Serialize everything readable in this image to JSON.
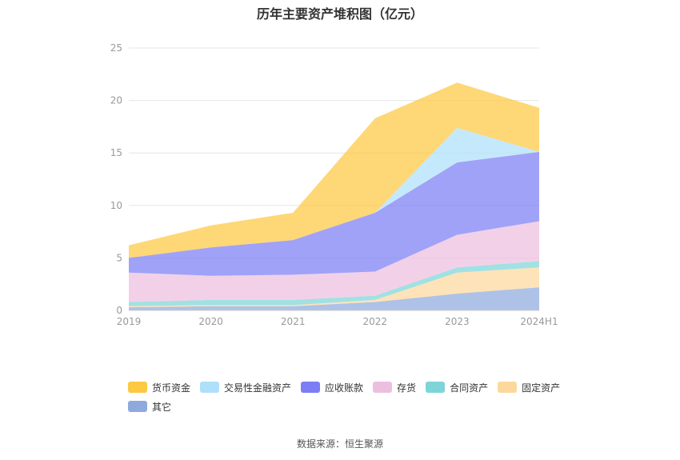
{
  "chart_data": {
    "type": "area",
    "stacked": true,
    "title": "历年主要资产堆积图（亿元）",
    "categories": [
      "2019",
      "2020",
      "2021",
      "2022",
      "2023",
      "2024H1"
    ],
    "ylim": [
      0,
      25
    ],
    "yticks": [
      0,
      5,
      10,
      15,
      20,
      25
    ],
    "xlabel": "",
    "ylabel": "",
    "legend_position": "bottom",
    "series": [
      {
        "name": "其它",
        "color": "#8eaadc",
        "values": [
          0.3,
          0.4,
          0.4,
          0.8,
          1.6,
          2.2
        ]
      },
      {
        "name": "固定资产",
        "color": "#fdd89c",
        "values": [
          0.1,
          0.1,
          0.1,
          0.2,
          2.0,
          1.9
        ]
      },
      {
        "name": "合同资产",
        "color": "#7dd5d8",
        "values": [
          0.4,
          0.5,
          0.5,
          0.4,
          0.5,
          0.6
        ]
      },
      {
        "name": "存货",
        "color": "#edbfdf",
        "values": [
          2.8,
          2.3,
          2.4,
          2.3,
          3.1,
          3.8
        ]
      },
      {
        "name": "应收账款",
        "color": "#7b7ef5",
        "values": [
          1.4,
          2.7,
          3.3,
          5.6,
          6.9,
          6.6
        ]
      },
      {
        "name": "交易性金融资产",
        "color": "#aee0fb",
        "values": [
          0.0,
          0.0,
          0.0,
          0.0,
          3.3,
          0.0
        ]
      },
      {
        "name": "货币资金",
        "color": "#fdc842",
        "values": [
          1.2,
          2.1,
          2.6,
          9.0,
          4.3,
          4.2
        ]
      }
    ],
    "legend_order": [
      "货币资金",
      "交易性金融资产",
      "应收账款",
      "存货",
      "合同资产",
      "固定资产",
      "其它"
    ]
  },
  "source": "数据来源：恒生聚源"
}
